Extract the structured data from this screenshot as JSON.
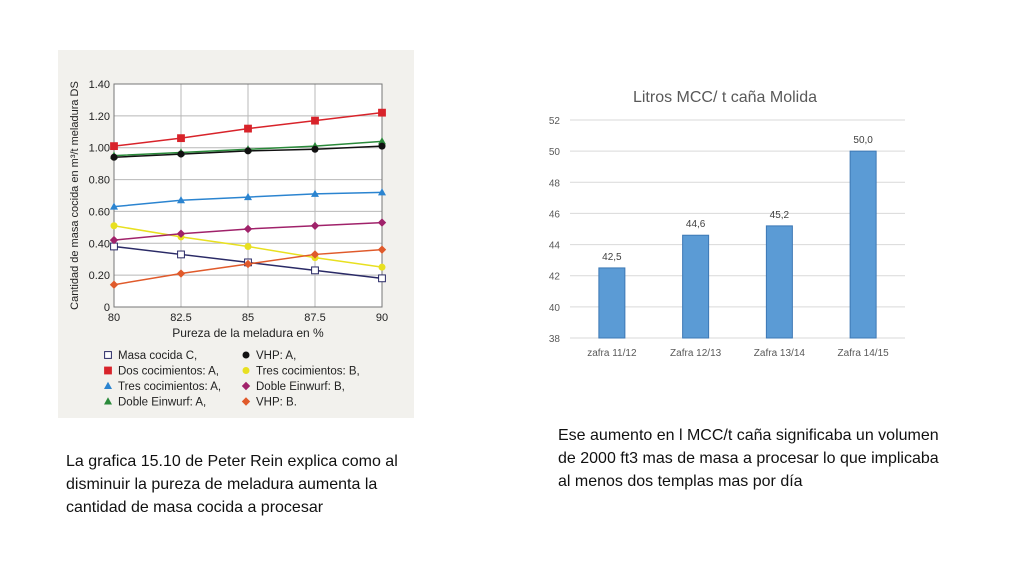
{
  "captions": {
    "left": "La grafica 15.10 de Peter Rein explica como al disminuir la pureza de meladura aumenta la cantidad de masa cocida a procesar",
    "right": "Ese aumento en l MCC/t caña significaba un volumen de 2000 ft3 mas de masa a procesar lo que implicaba al menos dos templas mas por día"
  },
  "chart_data": [
    {
      "type": "line",
      "xlabel": "Pureza de la meladura en %",
      "ylabel": "Cantidad de masa cocida en m³/t meladura DS",
      "x": [
        80,
        82.5,
        85,
        87.5,
        90
      ],
      "x_tick_labels": [
        "80",
        "82.5",
        "85",
        "87.5",
        "90"
      ],
      "y_ticks": [
        0,
        0.2,
        0.4,
        0.6,
        0.8,
        1.0,
        1.2,
        1.4
      ],
      "y_tick_labels": [
        "0",
        "0.20",
        "0.40",
        "0.60",
        "0.80",
        "1.00",
        "1.20",
        "1.40"
      ],
      "xlim": [
        80,
        90
      ],
      "ylim": [
        0,
        1.4
      ],
      "grid": true,
      "legend_position": "bottom",
      "series": [
        {
          "name": "Masa cocida C,",
          "color": "#2a2a66",
          "marker": "open-square",
          "values": [
            0.38,
            0.33,
            0.28,
            0.23,
            0.18
          ]
        },
        {
          "name": "Dos cocimientos: A,",
          "color": "#d8232a",
          "marker": "square",
          "values": [
            1.01,
            1.06,
            1.12,
            1.17,
            1.22
          ]
        },
        {
          "name": "Tres cocimientos: A,",
          "color": "#2b84d0",
          "marker": "triangle",
          "values": [
            0.63,
            0.67,
            0.69,
            0.71,
            0.72
          ]
        },
        {
          "name": "Doble Einwurf: A,",
          "color": "#2a8a3a",
          "marker": "triangle",
          "values": [
            0.95,
            0.97,
            0.99,
            1.01,
            1.04
          ]
        },
        {
          "name": "VHP: A,",
          "color": "#111111",
          "marker": "circle",
          "values": [
            0.94,
            0.96,
            0.98,
            0.99,
            1.01
          ]
        },
        {
          "name": "Tres cocimientos: B,",
          "color": "#e8e020",
          "marker": "circle",
          "values": [
            0.51,
            0.44,
            0.38,
            0.31,
            0.25
          ]
        },
        {
          "name": "Doble Einwurf: B,",
          "color": "#a0226a",
          "marker": "diamond",
          "values": [
            0.42,
            0.46,
            0.49,
            0.51,
            0.53
          ]
        },
        {
          "name": "VHP: B.",
          "color": "#e05a2b",
          "marker": "diamond",
          "values": [
            0.14,
            0.21,
            0.27,
            0.33,
            0.36
          ]
        }
      ]
    },
    {
      "type": "bar",
      "title": "Litros MCC/ t caña Molida",
      "categories": [
        "zafra 11/12",
        "Zafra 12/13",
        "Zafra 13/14",
        "Zafra 14/15"
      ],
      "values": [
        42.5,
        44.6,
        45.2,
        50.0
      ],
      "data_labels": [
        "42,5",
        "44,6",
        "45,2",
        "50,0"
      ],
      "y_ticks": [
        38,
        40,
        42,
        44,
        46,
        48,
        50,
        52
      ],
      "ylim": [
        38,
        52
      ],
      "grid": true,
      "bar_color": "#5b9bd5"
    }
  ]
}
